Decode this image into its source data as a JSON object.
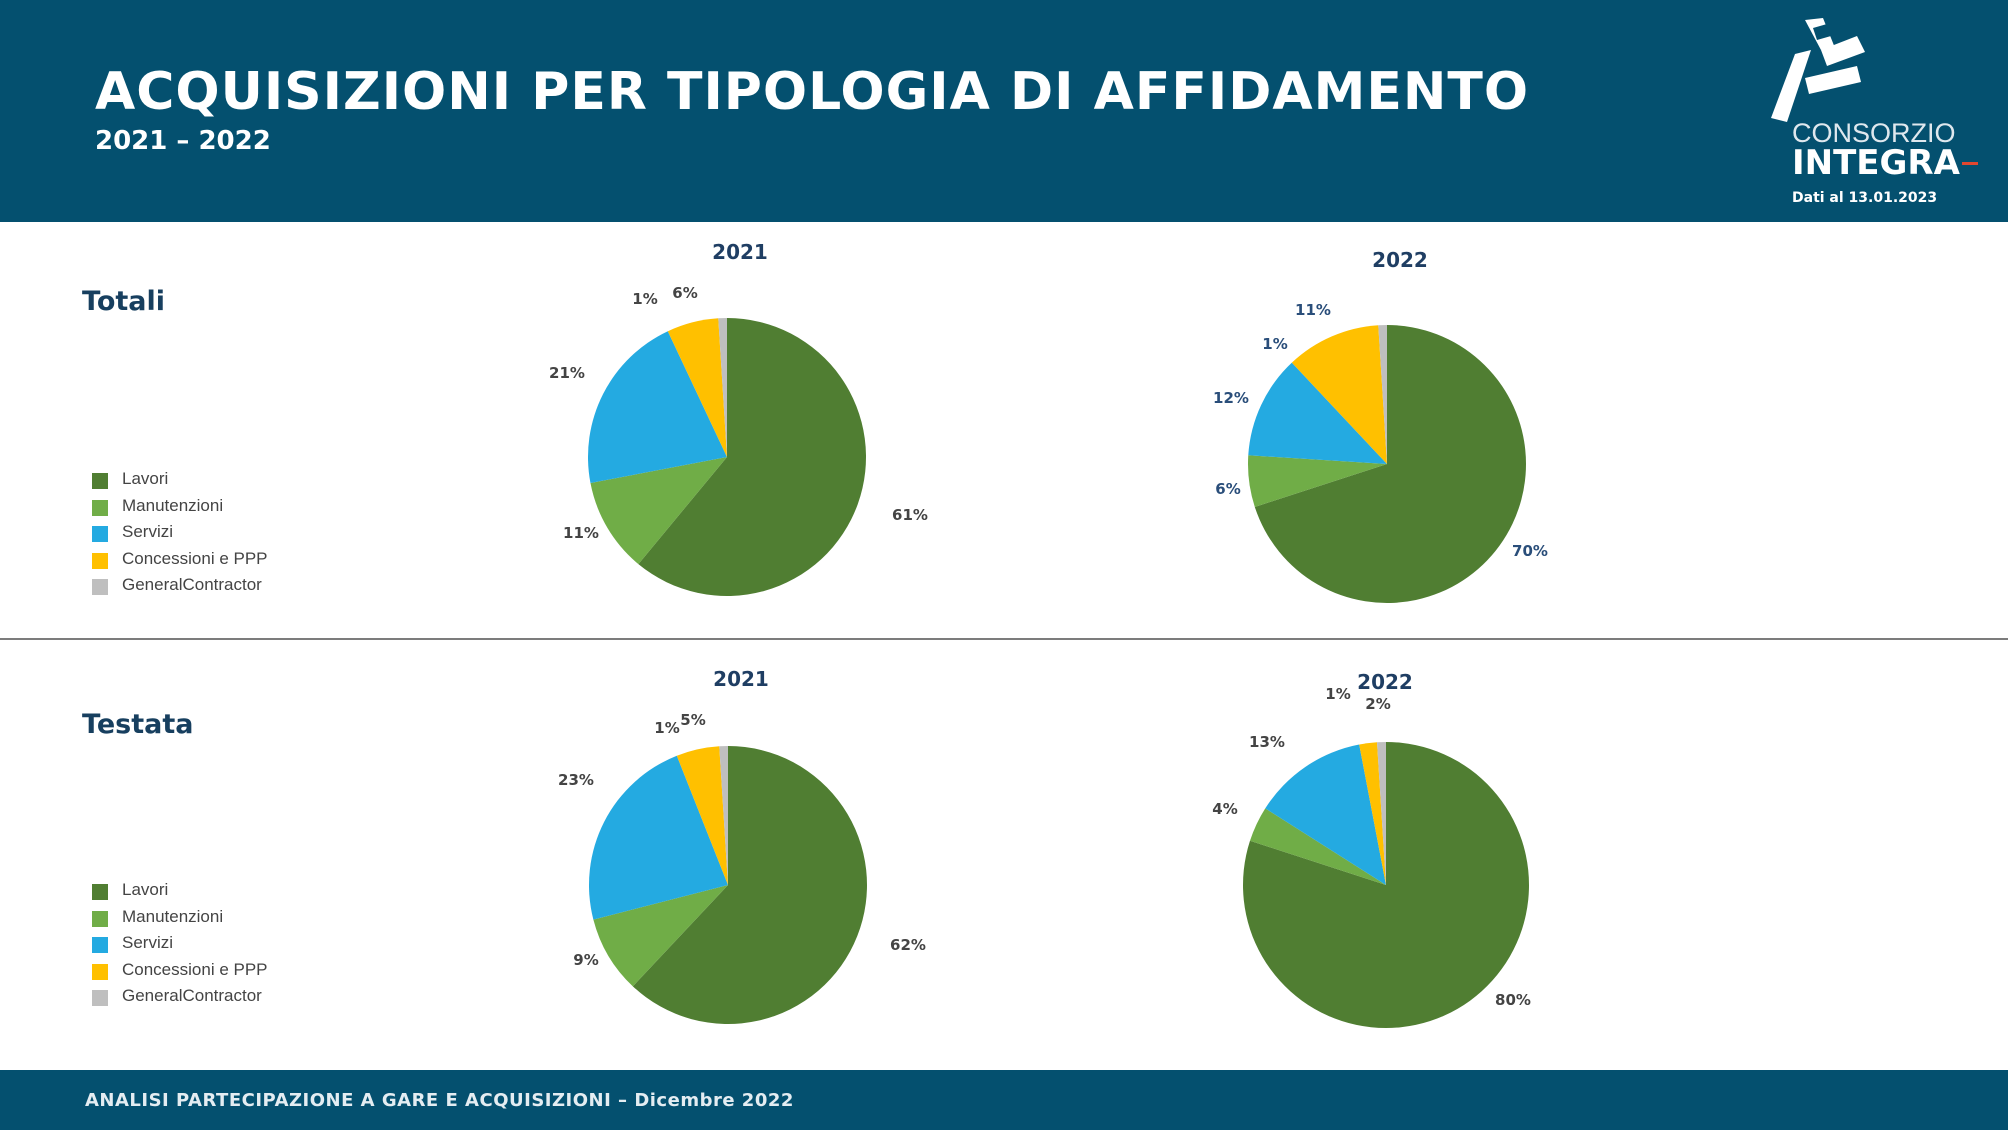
{
  "header": {
    "title": "ACQUISIZIONI PER TIPOLOGIA DI AFFIDAMENTO",
    "subtitle": "2021 – 2022",
    "brand_top": "CONSORZIO",
    "brand_main": "INTEGRA",
    "data_date": "Dati al 13.01.2023"
  },
  "colors": {
    "header_bg": "#04506f",
    "lavori": "#507e32",
    "manutenzioni": "#70ad47",
    "servizi": "#24aae1",
    "concessioni": "#ffc000",
    "general_contractor": "#bfbfbf"
  },
  "sections": [
    {
      "title": "Totali",
      "legend": [
        {
          "label": "Lavori",
          "color": "#507e32"
        },
        {
          "label": "Manutenzioni",
          "color": "#70ad47"
        },
        {
          "label": "Servizi",
          "color": "#24aae1"
        },
        {
          "label": "Concessioni e PPP",
          "color": "#ffc000"
        },
        {
          "label": "GeneralContractor",
          "color": "#bfbfbf"
        }
      ]
    },
    {
      "title": "Testata",
      "legend": [
        {
          "label": "Lavori",
          "color": "#507e32"
        },
        {
          "label": "Manutenzioni",
          "color": "#70ad47"
        },
        {
          "label": "Servizi",
          "color": "#24aae1"
        },
        {
          "label": "Concessioni e PPP",
          "color": "#ffc000"
        },
        {
          "label": "GeneralContractor",
          "color": "#bfbfbf"
        }
      ]
    }
  ],
  "chart_data": [
    {
      "type": "pie",
      "section": "Totali",
      "title": "2021",
      "categories": [
        "Lavori",
        "Manutenzioni",
        "Servizi",
        "Concessioni e PPP",
        "GeneralContractor"
      ],
      "values": [
        61,
        11,
        21,
        6,
        1
      ],
      "value_labels": [
        "61%",
        "11%",
        "21%",
        "6%",
        "1%"
      ],
      "colors": [
        "#507e32",
        "#70ad47",
        "#24aae1",
        "#ffc000",
        "#bfbfbf"
      ],
      "label_color": "#444444"
    },
    {
      "type": "pie",
      "section": "Totali",
      "title": "2022",
      "categories": [
        "Lavori",
        "Manutenzioni",
        "Servizi",
        "Concessioni e PPP",
        "GeneralContractor"
      ],
      "values": [
        70,
        6,
        12,
        11,
        1
      ],
      "value_labels": [
        "70%",
        "6%",
        "12%",
        "11%",
        "1%"
      ],
      "colors": [
        "#507e32",
        "#70ad47",
        "#24aae1",
        "#ffc000",
        "#bfbfbf"
      ],
      "label_color": "#2a4e7a"
    },
    {
      "type": "pie",
      "section": "Testata",
      "title": "2021",
      "categories": [
        "Lavori",
        "Manutenzioni",
        "Servizi",
        "Concessioni e PPP",
        "GeneralContractor"
      ],
      "values": [
        62,
        9,
        23,
        5,
        1
      ],
      "value_labels": [
        "62%",
        "9%",
        "23%",
        "5%",
        "1%"
      ],
      "colors": [
        "#507e32",
        "#70ad47",
        "#24aae1",
        "#ffc000",
        "#bfbfbf"
      ],
      "label_color": "#444444"
    },
    {
      "type": "pie",
      "section": "Testata",
      "title": "2022",
      "categories": [
        "Lavori",
        "Manutenzioni",
        "Servizi",
        "Concessioni e PPP",
        "GeneralContractor"
      ],
      "values": [
        80,
        4,
        13,
        2,
        1
      ],
      "value_labels": [
        "80%",
        "4%",
        "13%",
        "2%",
        "1%"
      ],
      "colors": [
        "#507e32",
        "#70ad47",
        "#24aae1",
        "#ffc000",
        "#bfbfbf"
      ],
      "label_color": "#444444"
    }
  ],
  "footer": {
    "text": "ANALISI PARTECIPAZIONE A GARE E ACQUISIZIONI – Dicembre 2022"
  }
}
